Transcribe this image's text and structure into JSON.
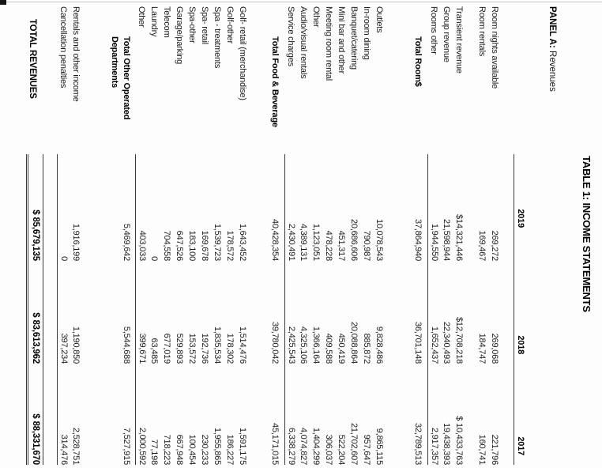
{
  "title": "TABLE 1: INCOME STATEMENTS",
  "panel": {
    "label": "PANEL A:",
    "name": "Revenues"
  },
  "table": {
    "columns": [
      "2019",
      "2018",
      "2017"
    ],
    "rows": [
      {
        "label": "Room nights available",
        "values": [
          "269,272",
          "269,068",
          "221,796"
        ],
        "type": "item"
      },
      {
        "label": "Room rentals",
        "values": [
          "169,467",
          "184,747",
          "160,741"
        ],
        "type": "item"
      },
      {
        "label": "Transient revenue",
        "values": [
          "$14,321,446",
          "$12,708,218",
          "$ 10,433,763"
        ],
        "type": "item",
        "gap": "sm"
      },
      {
        "label": "Group revenue",
        "values": [
          "21,598,944",
          "22,340,493",
          "19,438,393"
        ],
        "type": "item"
      },
      {
        "label": "Rooms other",
        "values": [
          "1,944,550",
          "1,652,437",
          "2,917,357"
        ],
        "type": "item",
        "underline": true
      },
      {
        "label": "Total Room$",
        "values": [
          "37,864,940",
          "36,701,148",
          "32,789,513"
        ],
        "type": "total"
      },
      {
        "label": "Outlets",
        "values": [
          "10,078,543",
          "9,828,486",
          "9,865,115"
        ],
        "type": "item",
        "gap": "lg"
      },
      {
        "label": "In-room dining",
        "values": [
          "790,987",
          "885,872",
          "957,647"
        ],
        "type": "item"
      },
      {
        "label": "Banquet/catering",
        "values": [
          "20,686,606",
          "20,088,864",
          "21,702,607"
        ],
        "type": "item"
      },
      {
        "label": "Mini bar and other",
        "values": [
          "451,317",
          "450,419",
          "522,204"
        ],
        "type": "item"
      },
      {
        "label": "Meeting room rental",
        "values": [
          "478,228",
          "409,588",
          "306,037"
        ],
        "type": "item"
      },
      {
        "label": "Other",
        "values": [
          "1,123,051",
          "1,366,164",
          "1,404,299"
        ],
        "type": "item"
      },
      {
        "label": "Audio/visual rentals",
        "values": [
          "4,389,131",
          "4,325,106",
          "4,074,827"
        ],
        "type": "item"
      },
      {
        "label": "Service charges",
        "values": [
          "2,430,491",
          "2,425,543",
          "6,338,279"
        ],
        "type": "item",
        "underline": true
      },
      {
        "label": "Total Food & Beverage",
        "values": [
          "40,428,354",
          "39,780,042",
          "45,171,015"
        ],
        "type": "total"
      },
      {
        "label": "Golf- retail (merchandise)",
        "values": [
          "1,643,452",
          "1,514,476",
          "1,591,175"
        ],
        "type": "item",
        "gap": "md"
      },
      {
        "label": "Golf-other",
        "values": [
          "178,572",
          "178,302",
          "186,227"
        ],
        "type": "item"
      },
      {
        "label": "Spa - treatments",
        "values": [
          "1,539,723",
          "1,835,534",
          "1,955,865"
        ],
        "type": "item"
      },
      {
        "label": "Spa- retail",
        "values": [
          "169,678",
          "192,736",
          "230,233"
        ],
        "type": "item"
      },
      {
        "label": "Spa-other",
        "values": [
          "183,100",
          "153,572",
          "100,454"
        ],
        "type": "item"
      },
      {
        "label": "Garage/parking",
        "values": [
          "647,526",
          "529,893",
          "667,948"
        ],
        "type": "item"
      },
      {
        "label": "Telecom",
        "values": [
          "704,558",
          "677,019",
          "718,223"
        ],
        "type": "item"
      },
      {
        "label": "Laundry",
        "values": [
          "0",
          "63,485",
          "77,198"
        ],
        "type": "item"
      },
      {
        "label": "Other",
        "values": [
          "403,033",
          "399,671",
          "2,000,592"
        ],
        "type": "item",
        "underline": true
      },
      {
        "label": "Total Other Operated\nDepartments",
        "values": [
          "5,469,642",
          "5,544,688",
          "7,527,915"
        ],
        "type": "total",
        "twoline": true
      },
      {
        "label": "Rentals and other income",
        "values": [
          "1,916,199",
          "1,190,850",
          "2,528,751"
        ],
        "type": "item",
        "gap": "xl"
      },
      {
        "label": "Cancellation penalties",
        "values": [
          "0",
          "397,234",
          "314,476"
        ],
        "type": "item",
        "underline": true
      },
      {
        "label": "TOTAL REVENUES",
        "values": [
          "$ 85,679,135",
          "$ 83,613,962",
          "$ 88,331,670"
        ],
        "type": "grand"
      }
    ]
  }
}
